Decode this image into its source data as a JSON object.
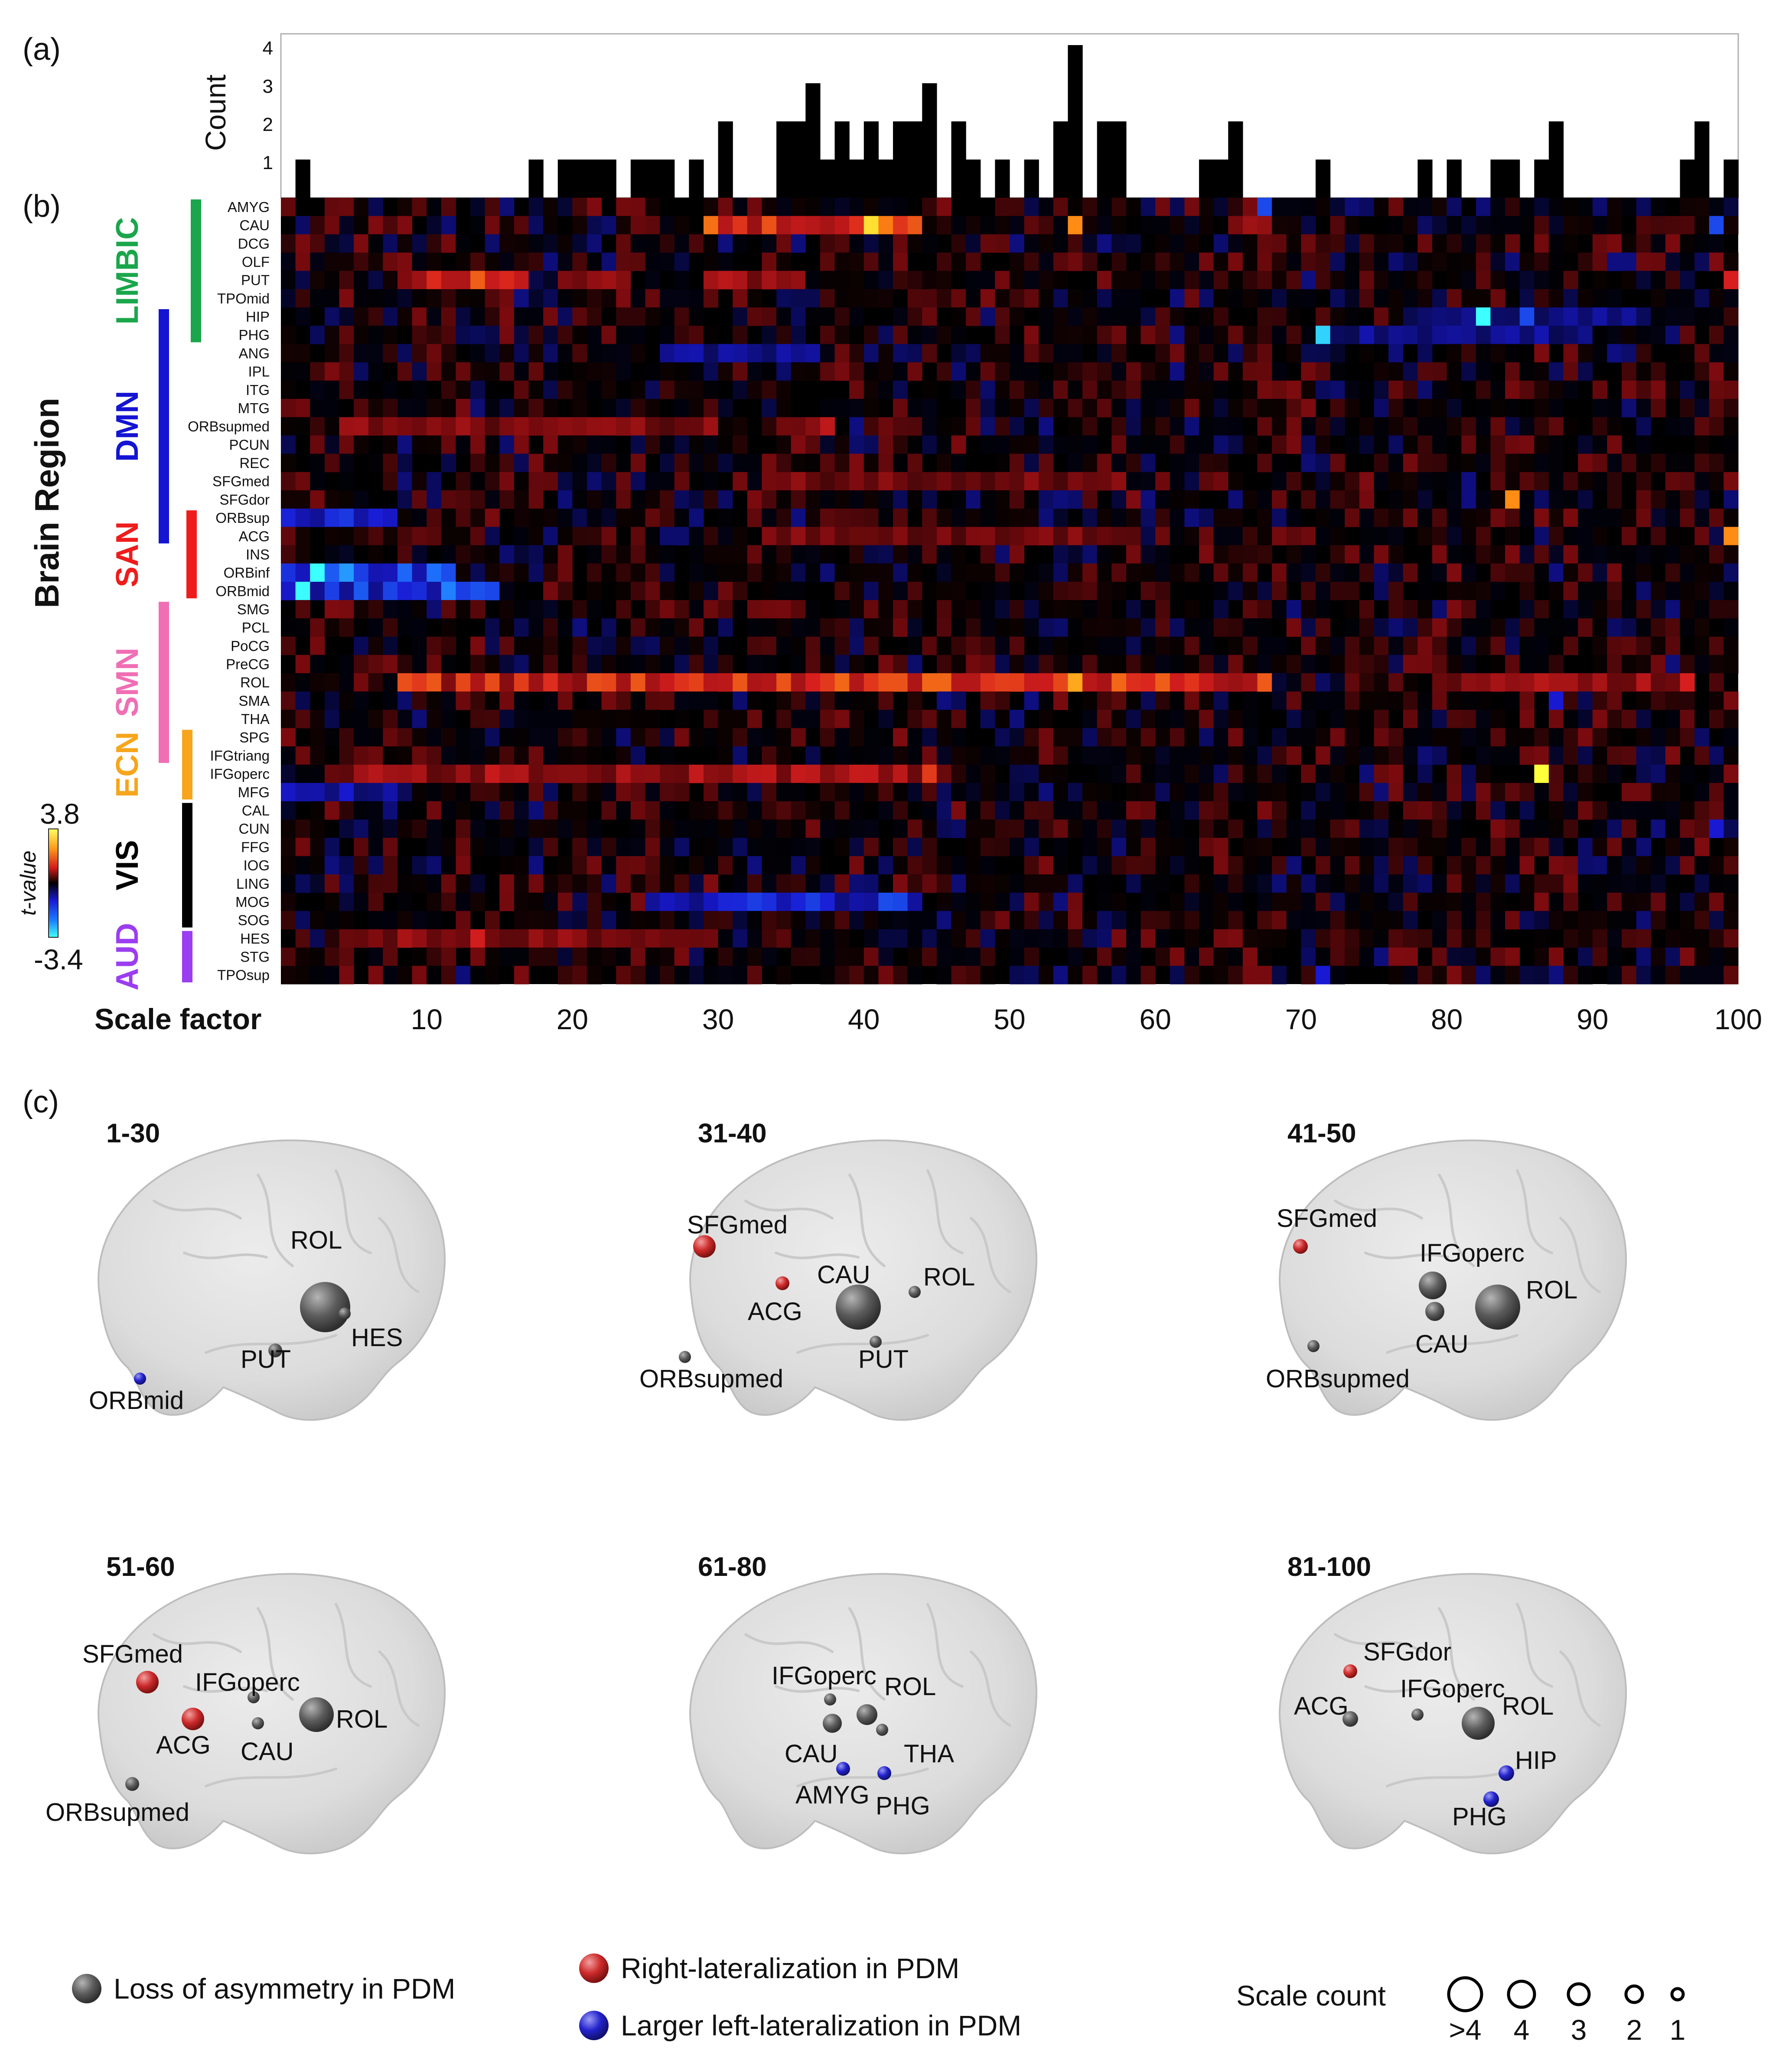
{
  "panels": {
    "a": "(a)",
    "b": "(b)",
    "c": "(c)"
  },
  "chart_data": [
    {
      "type": "bar",
      "ylabel": "Count",
      "yticks": [
        1,
        2,
        3,
        4
      ],
      "ylim": [
        0,
        4
      ],
      "x": [
        1,
        2,
        3,
        4,
        5,
        6,
        7,
        8,
        9,
        10,
        11,
        12,
        13,
        14,
        15,
        16,
        17,
        18,
        19,
        20,
        21,
        22,
        23,
        24,
        25,
        26,
        27,
        28,
        29,
        30,
        31,
        32,
        33,
        34,
        35,
        36,
        37,
        38,
        39,
        40,
        41,
        42,
        43,
        44,
        45,
        46,
        47,
        48,
        49,
        50,
        51,
        52,
        53,
        54,
        55,
        56,
        57,
        58,
        59,
        60,
        61,
        62,
        63,
        64,
        65,
        66,
        67,
        68,
        69,
        70,
        71,
        72,
        73,
        74,
        75,
        76,
        77,
        78,
        79,
        80,
        81,
        82,
        83,
        84,
        85,
        86,
        87,
        88,
        89,
        90,
        91,
        92,
        93,
        94,
        95,
        96,
        97,
        98,
        99,
        100
      ],
      "values": [
        0,
        1,
        0,
        0,
        0,
        0,
        0,
        0,
        0,
        0,
        0,
        0,
        0,
        0,
        0,
        0,
        0,
        1,
        0,
        1,
        1,
        1,
        1,
        0,
        1,
        1,
        1,
        0,
        1,
        0,
        2,
        0,
        0,
        0,
        2,
        2,
        3,
        1,
        2,
        1,
        2,
        1,
        2,
        2,
        3,
        0,
        2,
        1,
        0,
        1,
        0,
        1,
        0,
        2,
        4,
        0,
        2,
        2,
        0,
        0,
        0,
        0,
        0,
        1,
        1,
        2,
        0,
        0,
        0,
        0,
        0,
        1,
        0,
        0,
        0,
        0,
        0,
        0,
        1,
        0,
        1,
        0,
        0,
        1,
        1,
        0,
        1,
        2,
        0,
        0,
        0,
        0,
        0,
        0,
        0,
        0,
        1,
        2,
        0,
        1
      ]
    },
    {
      "type": "heatmap",
      "xlabel": "Scale factor",
      "ylabel": "Brain Region",
      "xticks": [
        10,
        20,
        30,
        40,
        50,
        60,
        70,
        80,
        90,
        100
      ],
      "xlim": [
        1,
        100
      ],
      "colorbar": {
        "label": "t-value",
        "max": "3.8",
        "min": "-3.4"
      },
      "rows": [
        "AMYG",
        "CAU",
        "DCG",
        "OLF",
        "PUT",
        "TPOmid",
        "HIP",
        "PHG",
        "ANG",
        "IPL",
        "ITG",
        "MTG",
        "ORBsupmed",
        "PCUN",
        "REC",
        "SFGmed",
        "SFGdor",
        "ORBsup",
        "ACG",
        "INS",
        "ORBinf",
        "ORBmid",
        "SMG",
        "PCL",
        "PoCG",
        "PreCG",
        "ROL",
        "SMA",
        "THA",
        "SPG",
        "IFGtriang",
        "IFGoperc",
        "MFG",
        "CAL",
        "CUN",
        "FFG",
        "IOG",
        "LING",
        "MOG",
        "SOG",
        "HES",
        "STG",
        "TPOsup"
      ],
      "networks": [
        {
          "name": "LIMBIC",
          "color": "#1aa64b",
          "rows": [
            0,
            7
          ]
        },
        {
          "name": "DMN",
          "color": "#1414d2",
          "rows": [
            6,
            18
          ]
        },
        {
          "name": "SAN",
          "color": "#ee1c1c",
          "rows": [
            17,
            21
          ]
        },
        {
          "name": "SMN",
          "color": "#f06eb4",
          "rows": [
            22,
            30
          ]
        },
        {
          "name": "ECN",
          "color": "#f7a51c",
          "rows": [
            29,
            32
          ]
        },
        {
          "name": "VIS",
          "color": "#000000",
          "rows": [
            33,
            39
          ]
        },
        {
          "name": "AUD",
          "color": "#9b3df0",
          "rows": [
            40,
            42
          ]
        }
      ],
      "bands": [
        {
          "row": "CAU",
          "from": 30,
          "to": 44,
          "peak": 41,
          "value": 2.6
        },
        {
          "row": "CAU",
          "from": 66,
          "to": 68,
          "value": 2.0
        },
        {
          "row": "PUT",
          "from": 9,
          "to": 17,
          "peak": 14,
          "value": 1.9
        },
        {
          "row": "PUT",
          "from": 20,
          "to": 24,
          "value": 1.4
        },
        {
          "row": "PUT",
          "from": 30,
          "to": 36,
          "value": 1.6
        },
        {
          "row": "ORBsupmed",
          "from": 5,
          "to": 30,
          "value": 1.4
        },
        {
          "row": "ORBsupmed",
          "from": 36,
          "to": 38,
          "value": 1.7
        },
        {
          "row": "SFGmed",
          "from": 34,
          "to": 58,
          "value": 1.3
        },
        {
          "row": "ACG",
          "from": 34,
          "to": 59,
          "value": 1.3
        },
        {
          "row": "ROL",
          "from": 9,
          "to": 68,
          "peak": 55,
          "value": 2.3
        },
        {
          "row": "ROL",
          "from": 80,
          "to": 97,
          "value": 1.6
        },
        {
          "row": "IFGoperc",
          "from": 5,
          "to": 46,
          "peak": 45,
          "value": 1.7
        },
        {
          "row": "HES",
          "from": 6,
          "to": 30,
          "peak": 14,
          "value": 1.5
        },
        {
          "row": "ORBsup",
          "from": 1,
          "to": 8,
          "value": -2.1
        },
        {
          "row": "ORBinf",
          "from": 1,
          "to": 12,
          "peak": 3,
          "value": -2.8
        },
        {
          "row": "ORBmid",
          "from": 1,
          "to": 15,
          "peak": 2,
          "value": -2.6
        },
        {
          "row": "MFG",
          "from": 1,
          "to": 8,
          "value": -1.8
        },
        {
          "row": "MOG",
          "from": 26,
          "to": 44,
          "value": -2.3
        },
        {
          "row": "ANG",
          "from": 27,
          "to": 37,
          "value": -1.6
        },
        {
          "row": "PHG",
          "from": 72,
          "to": 90,
          "value": -1.6
        },
        {
          "row": "HIP",
          "from": 78,
          "to": 94,
          "value": -1.5
        }
      ],
      "cells": [
        {
          "row": "HIP",
          "x": 83,
          "value": -3.4
        },
        {
          "row": "PHG",
          "x": 72,
          "value": -3.2
        },
        {
          "row": "SFGdor",
          "x": 85,
          "value": 2.8
        },
        {
          "row": "ACG",
          "x": 100,
          "value": 2.8
        },
        {
          "row": "IFGoperc",
          "x": 87,
          "value": 3.6
        },
        {
          "row": "CAU",
          "x": 55,
          "value": 2.8
        },
        {
          "row": "AMYG",
          "x": 68,
          "value": -2.4
        },
        {
          "row": "CAU",
          "x": 99,
          "value": -2.4
        },
        {
          "row": "HIP",
          "x": 86,
          "value": -2.4
        },
        {
          "row": "SMA",
          "x": 88,
          "value": -2.0
        },
        {
          "row": "PUT",
          "x": 100,
          "value": 2.0
        },
        {
          "row": "ROL",
          "x": 97,
          "value": 2.0
        },
        {
          "row": "CUN",
          "x": 99,
          "value": -2.0
        },
        {
          "row": "TPOsup",
          "x": 72,
          "value": -2.0
        }
      ]
    }
  ],
  "brains": [
    {
      "title": "1-30",
      "labels": [
        "ROL",
        "PUT",
        "HES",
        "ORBmid"
      ]
    },
    {
      "title": "31-40",
      "labels": [
        "SFGmed",
        "CAU",
        "ROL",
        "ACG",
        "PUT",
        "ORBsupmed"
      ]
    },
    {
      "title": "41-50",
      "labels": [
        "SFGmed",
        "IFGoperc",
        "ROL",
        "CAU",
        "ORBsupmed"
      ]
    },
    {
      "title": "51-60",
      "labels": [
        "SFGmed",
        "IFGoperc",
        "ACG",
        "CAU",
        "ROL",
        "ORBsupmed"
      ]
    },
    {
      "title": "61-80",
      "labels": [
        "IFGoperc",
        "ROL",
        "CAU",
        "THA",
        "AMYG",
        "PHG"
      ]
    },
    {
      "title": "81-100",
      "labels": [
        "SFGdor",
        "ACG",
        "IFGoperc",
        "ROL",
        "HIP",
        "PHG"
      ]
    }
  ],
  "legend": {
    "loss": {
      "text": "Loss of asymmetry in PDM",
      "color": "#5a5a5a"
    },
    "right": {
      "text": "Right-lateralization in PDM",
      "color": "#cc2a2a"
    },
    "left": {
      "text": "Larger left-lateralization in PDM",
      "color": "#2222cc"
    },
    "scale_count": {
      "title": "Scale count",
      "labels": [
        ">4",
        "4",
        "3",
        "2",
        "1"
      ]
    }
  }
}
